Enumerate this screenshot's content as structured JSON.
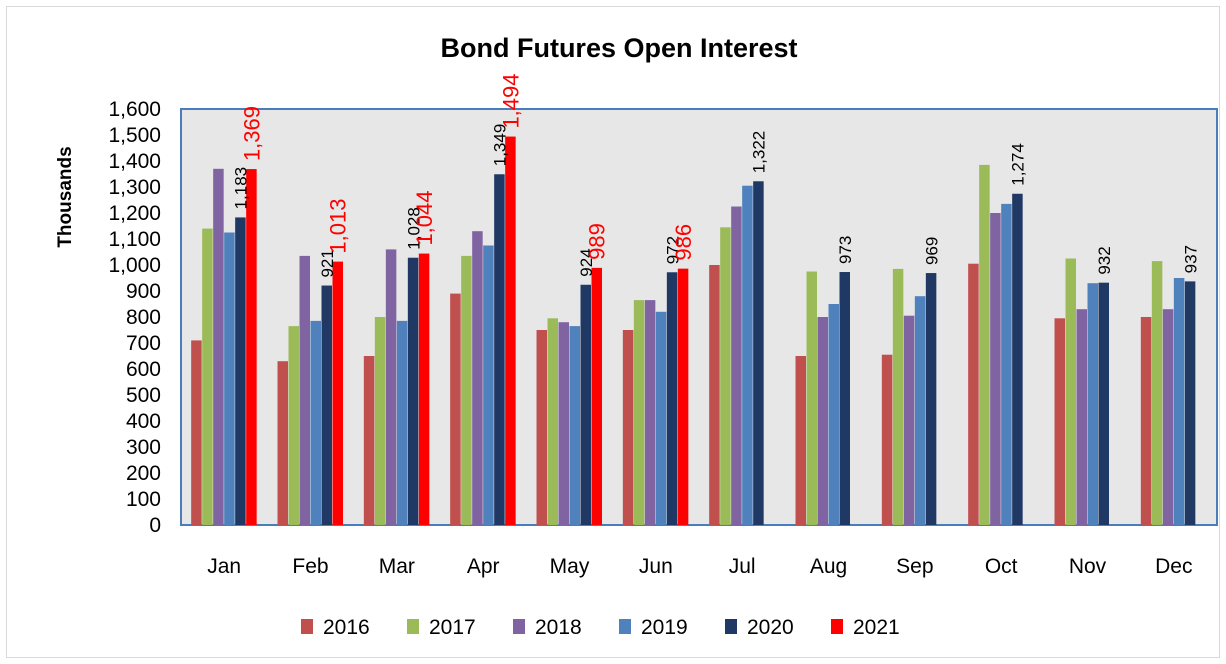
{
  "chart_data": {
    "type": "bar",
    "title": "Bond Futures Open Interest",
    "xlabel": "",
    "ylabel": "Thousands",
    "ylim": [
      0,
      1600
    ],
    "y_ticks": [
      "0",
      "100",
      "200",
      "300",
      "400",
      "500",
      "600",
      "700",
      "800",
      "900",
      "1,000",
      "1,100",
      "1,200",
      "1,300",
      "1,400",
      "1,500",
      "1,600"
    ],
    "grid": false,
    "legend_position": "bottom",
    "categories": [
      "Jan",
      "Feb",
      "Mar",
      "Apr",
      "May",
      "Jun",
      "Jul",
      "Aug",
      "Sep",
      "Oct",
      "Nov",
      "Dec"
    ],
    "series": [
      {
        "name": "2016",
        "color": "#c0504d",
        "values": [
          710,
          630,
          650,
          890,
          750,
          750,
          1000,
          650,
          655,
          1005,
          795,
          800
        ]
      },
      {
        "name": "2017",
        "color": "#9bbb59",
        "values": [
          1140,
          765,
          800,
          1035,
          795,
          865,
          1145,
          975,
          985,
          1385,
          1025,
          1015
        ]
      },
      {
        "name": "2018",
        "color": "#8064a2",
        "values": [
          1370,
          1035,
          1060,
          1130,
          780,
          865,
          1225,
          800,
          805,
          1200,
          830,
          830
        ]
      },
      {
        "name": "2019",
        "color": "#4f81bd",
        "values": [
          1125,
          785,
          785,
          1075,
          765,
          820,
          1305,
          850,
          880,
          1235,
          930,
          950
        ]
      },
      {
        "name": "2020",
        "color": "#1f3864",
        "values": [
          1183,
          921,
          1028,
          1349,
          924,
          972,
          1322,
          973,
          969,
          1274,
          932,
          937
        ]
      },
      {
        "name": "2021",
        "color": "#ff0000",
        "values": [
          1369,
          1013,
          1044,
          1494,
          989,
          986,
          null,
          null,
          null,
          null,
          null,
          null
        ]
      }
    ],
    "data_labels": {
      "2020": [
        "1,183",
        "921",
        "1,028",
        "1,349",
        "924",
        "972",
        "1,322",
        "973",
        "969",
        "1,274",
        "932",
        "937"
      ],
      "2021": [
        "1,369",
        "1,013",
        "1,044",
        "1,494",
        "989",
        "986",
        "",
        "",
        "",
        "",
        "",
        ""
      ]
    }
  }
}
